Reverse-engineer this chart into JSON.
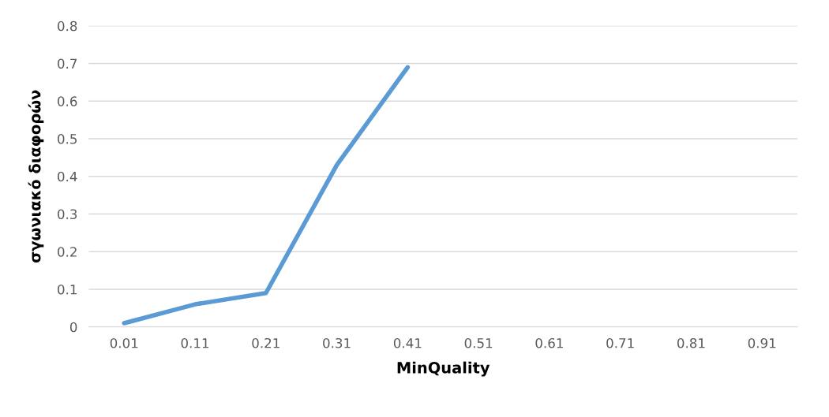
{
  "chart_data": {
    "type": "line",
    "xlabel": "MinQuality",
    "ylabel": "σγωνιακό διαφορών",
    "categories": [
      "0.01",
      "0.11",
      "0.21",
      "0.31",
      "0.41",
      "0.51",
      "0.61",
      "0.71",
      "0.81",
      "0.91"
    ],
    "series": [
      {
        "color": "#5b9bd5",
        "values": [
          0.01,
          0.06,
          0.09,
          0.43,
          0.69,
          null,
          null,
          null,
          null,
          null
        ]
      }
    ],
    "ylim": [
      0,
      0.8
    ],
    "yticks": [
      0,
      0.1,
      0.2,
      0.3,
      0.4,
      0.5,
      0.6,
      0.7,
      0.8
    ],
    "grid": "y",
    "marker": "none",
    "line_style": "solid"
  }
}
